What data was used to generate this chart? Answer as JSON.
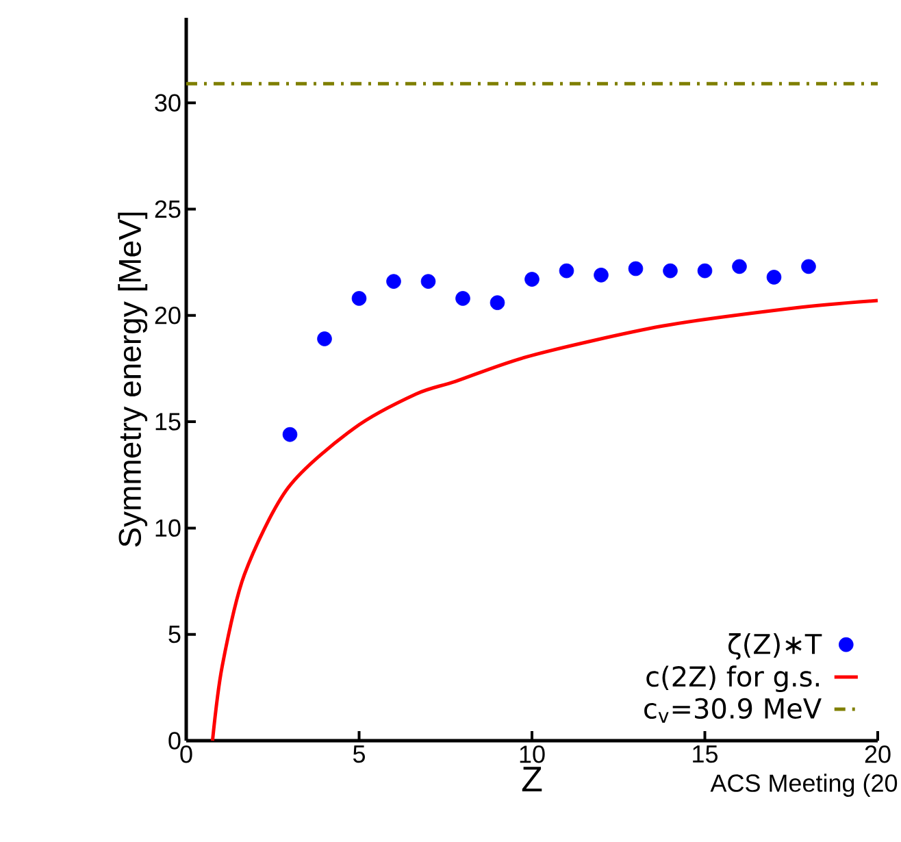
{
  "chart_data": {
    "type": "scatter",
    "xlabel": "Z",
    "ylabel": "Symmetry energy [MeV]",
    "xlim": [
      0,
      20
    ],
    "ylim": [
      0,
      34
    ],
    "xticks": [
      0,
      5,
      10,
      15,
      20
    ],
    "yticks": [
      0,
      5,
      10,
      15,
      20,
      25,
      30
    ],
    "legend": "bottom right",
    "series": [
      {
        "name": "ζ(Z)∗T",
        "color": "#0000ff",
        "marker": "circle",
        "x": [
          3,
          4,
          5,
          6,
          7,
          8,
          9,
          10,
          11,
          12,
          13,
          14,
          15,
          16,
          17,
          18
        ],
        "values": [
          14.4,
          18.9,
          20.8,
          21.6,
          21.6,
          20.8,
          20.6,
          21.7,
          22.1,
          21.9,
          22.2,
          22.1,
          22.1,
          22.3,
          21.8,
          22.3
        ]
      },
      {
        "name": "c(2Z) for g.s.",
        "type": "line",
        "marker": "none",
        "color": "#ff0000",
        "x": [
          0.76,
          1.04,
          1.68,
          2.95,
          4.86,
          6.64,
          7.79,
          9.95,
          13.77,
          17.58,
          20
        ],
        "values": [
          0,
          3.5,
          7.8,
          11.9,
          14.7,
          16.3,
          16.9,
          18.1,
          19.5,
          20.35,
          20.7
        ]
      }
    ],
    "ref_lines": [
      {
        "axis": "y",
        "value": 30.9,
        "label": "c$_{v}$=30.9 MeV",
        "color": "#7f7f00",
        "line_style": "dashed"
      }
    ],
    "annotations": [
      "ACS Meeting (20"
    ]
  }
}
